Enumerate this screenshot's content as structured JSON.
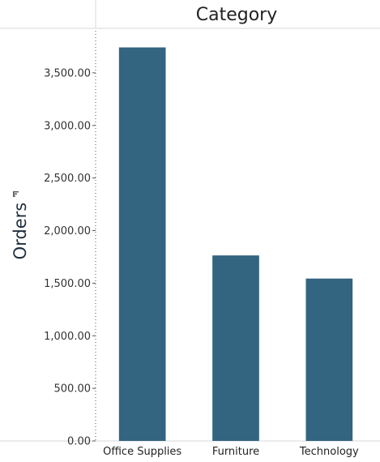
{
  "chart_data": {
    "type": "bar",
    "title": "Category",
    "xlabel": "",
    "ylabel": "Orders",
    "categories": [
      "Office Supplies",
      "Furniture",
      "Technology"
    ],
    "values": [
      3742,
      1764,
      1544
    ],
    "ylim": [
      0,
      3900
    ],
    "yticks": [
      0,
      500,
      1000,
      1500,
      2000,
      2500,
      3000,
      3500
    ],
    "ytick_labels": [
      "0.00",
      "500.00",
      "1,000.00",
      "1,500.00",
      "2,000.00",
      "2,500.00",
      "3,000.00",
      "3,500.00"
    ],
    "grid": false,
    "bar_color": "#336480",
    "sort_icon": "sort-icon"
  }
}
